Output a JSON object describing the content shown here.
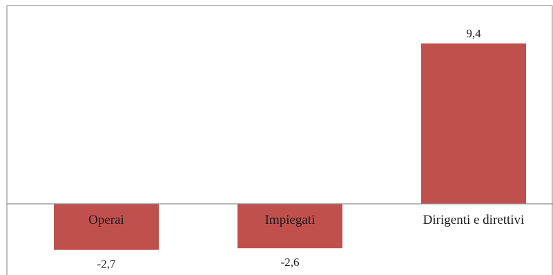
{
  "chart_data": {
    "type": "bar",
    "categories": [
      "Operai",
      "Impiegati",
      "Dirigenti e direttivi"
    ],
    "values": [
      -2.7,
      -2.6,
      9.4
    ],
    "value_labels": [
      "-2,7",
      "-2,6",
      "9,4"
    ],
    "title": "",
    "xlabel": "",
    "ylabel": "",
    "grid": false,
    "legend": "none",
    "colors": {
      "bar": "#c0504d",
      "axis": "#8c8c8c",
      "frame": "#7f7f7f"
    }
  }
}
